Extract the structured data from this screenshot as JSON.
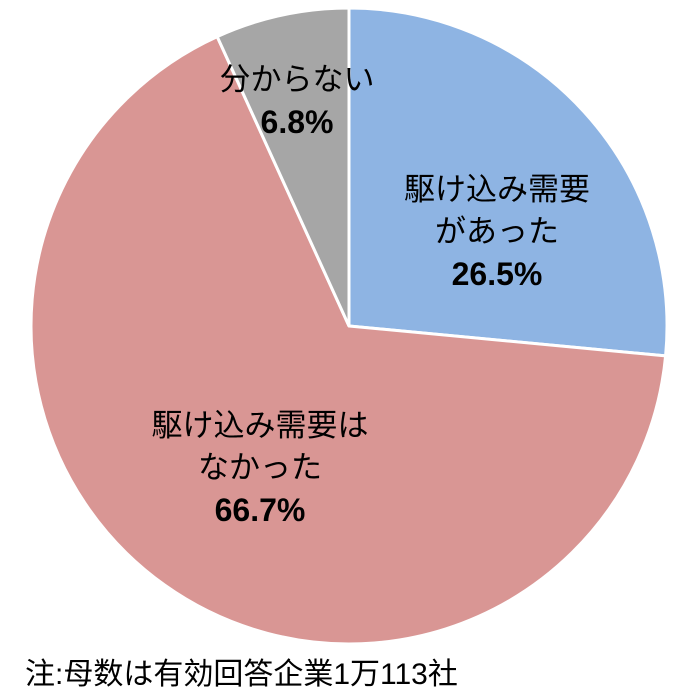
{
  "chart_data": {
    "type": "pie",
    "title": "",
    "direction": "clockwise",
    "start_angle_deg": 0,
    "legend": "none (labels inside slices)",
    "background_color": "#ffffff",
    "slice_border_color": "#ffffff",
    "slices": [
      {
        "label": "駆け込み需要があった",
        "label_lines": [
          "駆け込み需要",
          "があった"
        ],
        "value": 26.5,
        "pct_label": "26.5%",
        "color": "#8EB4E3"
      },
      {
        "label": "駆け込み需要はなかった",
        "label_lines": [
          "駆け込み需要は",
          "なかった"
        ],
        "value": 66.7,
        "pct_label": "66.7%",
        "color": "#D99694"
      },
      {
        "label": "分からない",
        "label_lines": [
          "分からない"
        ],
        "value": 6.8,
        "pct_label": "6.8%",
        "color": "#A6A6A6"
      }
    ],
    "note": "注:母数は有効回答企業1万113社"
  }
}
